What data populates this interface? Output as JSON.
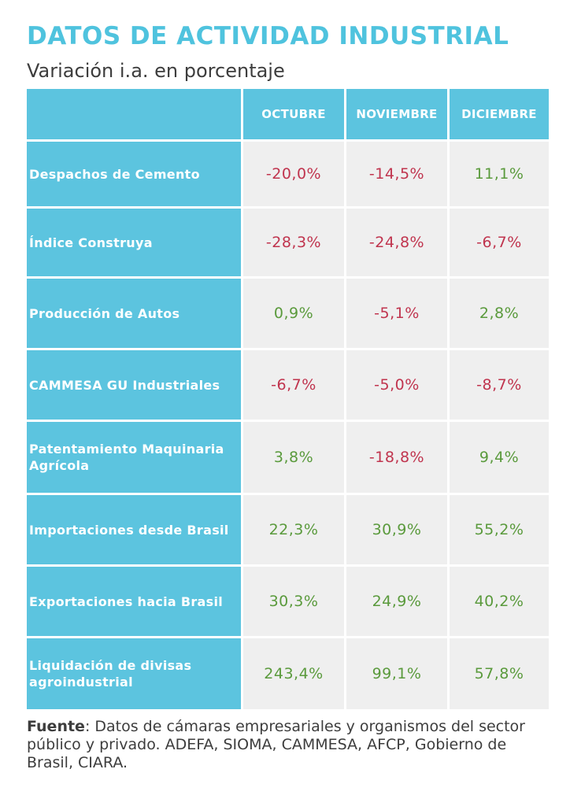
{
  "title": "DATOS DE ACTIVIDAD INDUSTRIAL",
  "subtitle": "Variación i.a. en porcentaje",
  "columns": [
    "OCTUBRE",
    "NOVIEMBRE",
    "DICIEMBRE"
  ],
  "rows": [
    {
      "label": "Despachos de Cemento",
      "values": [
        "-20,0%",
        "-14,5%",
        "11,1%"
      ]
    },
    {
      "label": "Índice Construya",
      "values": [
        "-28,3%",
        "-24,8%",
        "-6,7%"
      ]
    },
    {
      "label": "Producción de Autos",
      "values": [
        "0,9%",
        "-5,1%",
        "2,8%"
      ]
    },
    {
      "label": "CAMMESA GU Industriales",
      "values": [
        "-6,7%",
        "-5,0%",
        "-8,7%"
      ]
    },
    {
      "label": "Patentamiento Maquinaria Agrícola",
      "values": [
        "3,8%",
        "-18,8%",
        "9,4%"
      ]
    },
    {
      "label": "Importaciones desde Brasil",
      "values": [
        "22,3%",
        "30,9%",
        "55,2%"
      ]
    },
    {
      "label": "Exportaciones hacia Brasil",
      "values": [
        "30,3%",
        "24,9%",
        "40,2%"
      ]
    },
    {
      "label": "Liquidación de divisas agroindustrial",
      "values": [
        "243,4%",
        "99,1%",
        "57,8%"
      ]
    }
  ],
  "source": {
    "label": "Fuente",
    "text": ": Datos de cámaras empresariales y organismos del sector público y privado. ADEFA, SIOMA, CAMMESA, AFCP, Gobierno de Brasil, CIARA."
  },
  "colors": {
    "accent": "#4fc3de",
    "header_bg": "#5cc4df",
    "cell_bg": "#efefef",
    "negative": "#c0344e",
    "positive": "#5a9a3c"
  }
}
